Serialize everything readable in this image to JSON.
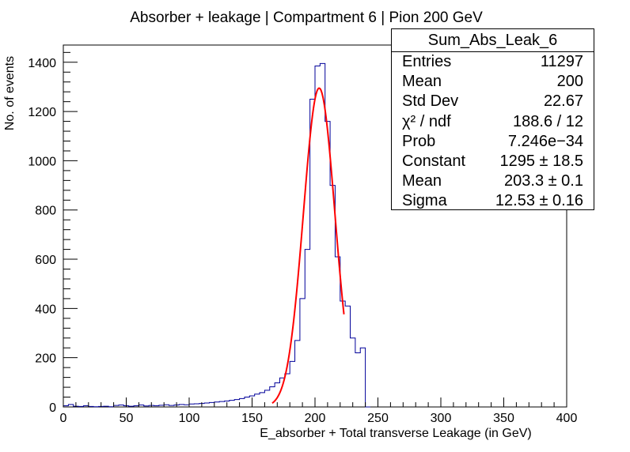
{
  "chart_data": {
    "type": "histogram",
    "title": "Absorber + leakage | Compartment 6 | Pion 200 GeV",
    "xlabel": "E_absorber + Total transverse Leakage (in GeV)",
    "ylabel": "No. of events",
    "xlim": [
      0,
      400
    ],
    "ylim": [
      0,
      1470
    ],
    "x_ticks": [
      "0",
      "50",
      "100",
      "150",
      "200",
      "250",
      "300",
      "350",
      "400"
    ],
    "y_ticks": [
      "0",
      "200",
      "400",
      "600",
      "800",
      "1000",
      "1200",
      "1400"
    ],
    "x_tick_values": [
      0,
      50,
      100,
      150,
      200,
      250,
      300,
      350,
      400
    ],
    "y_tick_values": [
      0,
      200,
      400,
      600,
      800,
      1000,
      1200,
      1400
    ],
    "grid": false,
    "bin_width": 4,
    "bins": [
      {
        "x": 0,
        "y": 5
      },
      {
        "x": 4,
        "y": 10
      },
      {
        "x": 8,
        "y": 3
      },
      {
        "x": 12,
        "y": 2
      },
      {
        "x": 16,
        "y": 5
      },
      {
        "x": 20,
        "y": 2
      },
      {
        "x": 24,
        "y": 1
      },
      {
        "x": 28,
        "y": 2
      },
      {
        "x": 32,
        "y": 3
      },
      {
        "x": 36,
        "y": 1
      },
      {
        "x": 40,
        "y": 6
      },
      {
        "x": 44,
        "y": 8
      },
      {
        "x": 48,
        "y": 5
      },
      {
        "x": 52,
        "y": 3
      },
      {
        "x": 56,
        "y": 5
      },
      {
        "x": 60,
        "y": 8
      },
      {
        "x": 64,
        "y": 4
      },
      {
        "x": 68,
        "y": 6
      },
      {
        "x": 72,
        "y": 5
      },
      {
        "x": 76,
        "y": 7
      },
      {
        "x": 80,
        "y": 9
      },
      {
        "x": 84,
        "y": 6
      },
      {
        "x": 88,
        "y": 8
      },
      {
        "x": 92,
        "y": 10
      },
      {
        "x": 96,
        "y": 9
      },
      {
        "x": 100,
        "y": 12
      },
      {
        "x": 104,
        "y": 13
      },
      {
        "x": 108,
        "y": 14
      },
      {
        "x": 112,
        "y": 16
      },
      {
        "x": 116,
        "y": 18
      },
      {
        "x": 120,
        "y": 20
      },
      {
        "x": 124,
        "y": 22
      },
      {
        "x": 128,
        "y": 24
      },
      {
        "x": 132,
        "y": 27
      },
      {
        "x": 136,
        "y": 30
      },
      {
        "x": 140,
        "y": 34
      },
      {
        "x": 144,
        "y": 40
      },
      {
        "x": 148,
        "y": 45
      },
      {
        "x": 152,
        "y": 52
      },
      {
        "x": 156,
        "y": 58
      },
      {
        "x": 160,
        "y": 68
      },
      {
        "x": 164,
        "y": 82
      },
      {
        "x": 168,
        "y": 98
      },
      {
        "x": 172,
        "y": 118
      },
      {
        "x": 176,
        "y": 135
      },
      {
        "x": 180,
        "y": 185
      },
      {
        "x": 184,
        "y": 270
      },
      {
        "x": 188,
        "y": 440
      },
      {
        "x": 192,
        "y": 640
      },
      {
        "x": 196,
        "y": 1250
      },
      {
        "x": 200,
        "y": 1385
      },
      {
        "x": 204,
        "y": 1395
      },
      {
        "x": 208,
        "y": 1160
      },
      {
        "x": 212,
        "y": 900
      },
      {
        "x": 216,
        "y": 610
      },
      {
        "x": 220,
        "y": 430
      },
      {
        "x": 224,
        "y": 410
      },
      {
        "x": 228,
        "y": 280
      },
      {
        "x": 232,
        "y": 220
      },
      {
        "x": 236,
        "y": 240
      },
      {
        "x": 240,
        "y": 0
      }
    ],
    "fit": {
      "function": "gaussian",
      "constant": 1295,
      "mean": 203.3,
      "sigma": 12.53,
      "x_range": [
        166,
        223
      ],
      "color": "#ff0000"
    },
    "hist_color": "#000099"
  },
  "stats": {
    "title": "Sum_Abs_Leak_6",
    "rows": [
      {
        "label": "Entries",
        "value": "11297"
      },
      {
        "label": "Mean",
        "value": "200"
      },
      {
        "label": "Std Dev",
        "value": "22.67"
      },
      {
        "label": "χ² / ndf",
        "value": "188.6 / 12"
      },
      {
        "label": "Prob",
        "value": "7.246e−34"
      },
      {
        "label": "Constant",
        "value": "1295 ± 18.5"
      },
      {
        "label": "Mean",
        "value": "203.3 ± 0.1"
      },
      {
        "label": "Sigma",
        "value": "12.53 ± 0.16"
      }
    ]
  }
}
